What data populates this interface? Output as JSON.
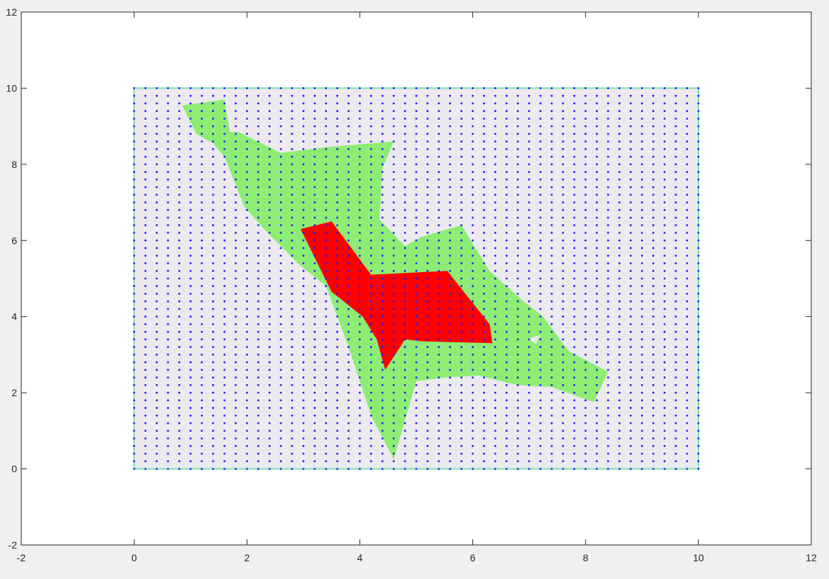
{
  "chart_data": {
    "type": "area",
    "title": "",
    "xlabel": "",
    "ylabel": "",
    "xlim": [
      -2,
      12
    ],
    "ylim": [
      -2,
      12
    ],
    "xticks": [
      -2,
      0,
      2,
      4,
      6,
      8,
      10,
      12
    ],
    "yticks": [
      -2,
      0,
      2,
      4,
      6,
      8,
      10,
      12
    ],
    "grid": false,
    "series": [
      {
        "kind": "rectangle",
        "x": [
          0,
          10,
          10,
          0
        ],
        "y": [
          0,
          0,
          10,
          10
        ],
        "fill": "#ece9ef",
        "edge": "#7fe0b0"
      },
      {
        "kind": "polygon",
        "x": [
          0.85,
          1.6,
          1.7,
          1.85,
          2.6,
          3.4,
          4.6,
          4.4,
          4.35,
          4.8,
          5.1,
          5.8,
          6.3,
          6.9,
          7.25,
          7.7,
          8.4,
          8.15,
          7.4,
          6.8,
          6.1,
          5.5,
          5.0,
          4.6,
          4.2,
          3.8,
          3.4,
          2.9,
          2.3,
          1.95,
          1.6,
          1.4,
          1.1
        ],
        "y": [
          9.55,
          9.7,
          8.85,
          8.85,
          8.3,
          8.45,
          8.6,
          7.9,
          6.55,
          5.85,
          6.1,
          6.4,
          5.2,
          4.4,
          4.0,
          3.1,
          2.55,
          1.75,
          2.15,
          2.2,
          2.45,
          2.4,
          2.3,
          0.25,
          1.4,
          3.2,
          4.8,
          5.4,
          6.3,
          6.9,
          8.2,
          8.55,
          8.8
        ],
        "fill": "#8ded73"
      },
      {
        "kind": "hole",
        "x": [
          6.98,
          7.2,
          7.12
        ],
        "y": [
          3.42,
          3.52,
          3.28
        ],
        "fill": "#ece9ef"
      },
      {
        "kind": "polygon",
        "x": [
          2.95,
          3.5,
          4.2,
          5.55,
          6.3,
          6.35,
          5.1,
          4.8,
          4.45,
          4.3,
          4.05,
          3.5
        ],
        "y": [
          6.3,
          6.5,
          5.1,
          5.2,
          3.8,
          3.3,
          3.35,
          3.4,
          2.6,
          3.4,
          4.0,
          4.65
        ],
        "fill": "#ff0000"
      }
    ],
    "points": {
      "x_start": 0,
      "x_end": 10,
      "x_step": 0.2,
      "y_start": 0,
      "y_end": 10,
      "y_step": 0.2,
      "color": "#1a1aff"
    }
  }
}
